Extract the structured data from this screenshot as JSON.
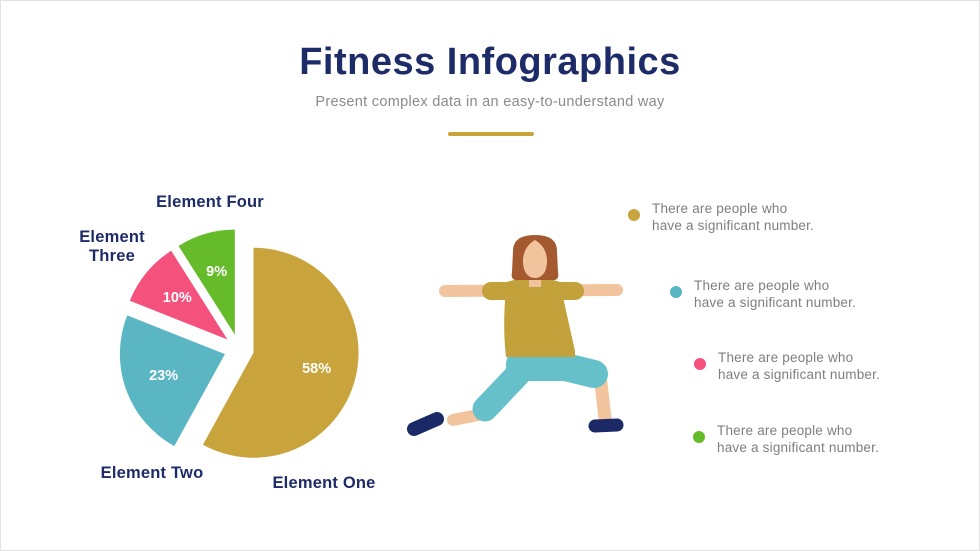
{
  "slide": {
    "title": "Fitness Infographics",
    "subtitle": "Present complex data in an easy-to-understand way",
    "accent_colors": {
      "navy": "#1e2b69",
      "gold": "#c9a43d"
    }
  },
  "chart_data": {
    "type": "pie",
    "title": "",
    "unit": "%",
    "direction": "clockwise",
    "start_angle_deg": 0,
    "exploded": true,
    "value_label_color": "#ffffff",
    "slices": [
      {
        "label": "Element One",
        "value": 58,
        "pct_label": "58%",
        "color": "#c9a43d"
      },
      {
        "label": "Element Two",
        "value": 23,
        "pct_label": "23%",
        "color": "#5bb6c4"
      },
      {
        "label": "Element Three",
        "value": 10,
        "pct_label": "10%",
        "color": "#f4517c"
      },
      {
        "label": "Element Four",
        "value": 9,
        "pct_label": "9%",
        "color": "#66bb2a"
      }
    ]
  },
  "legend": {
    "items": [
      {
        "color": "#c9a43d",
        "line1": "There are people who",
        "line2": "have a significant number."
      },
      {
        "color": "#5bb6c4",
        "line1": "There are people who",
        "line2": "have a significant number."
      },
      {
        "color": "#f4517c",
        "line1": "There are people who",
        "line2": "have a significant number."
      },
      {
        "color": "#66bb2a",
        "line1": "There are people who",
        "line2": "have a significant number."
      }
    ]
  },
  "illustration": {
    "name": "woman-warrior-yoga-pose",
    "colors": {
      "skin": "#f2c49e",
      "hair": "#a5592f",
      "top": "#c3a23c",
      "pants": "#66c0ca",
      "shoes": "#1b2a66"
    }
  }
}
